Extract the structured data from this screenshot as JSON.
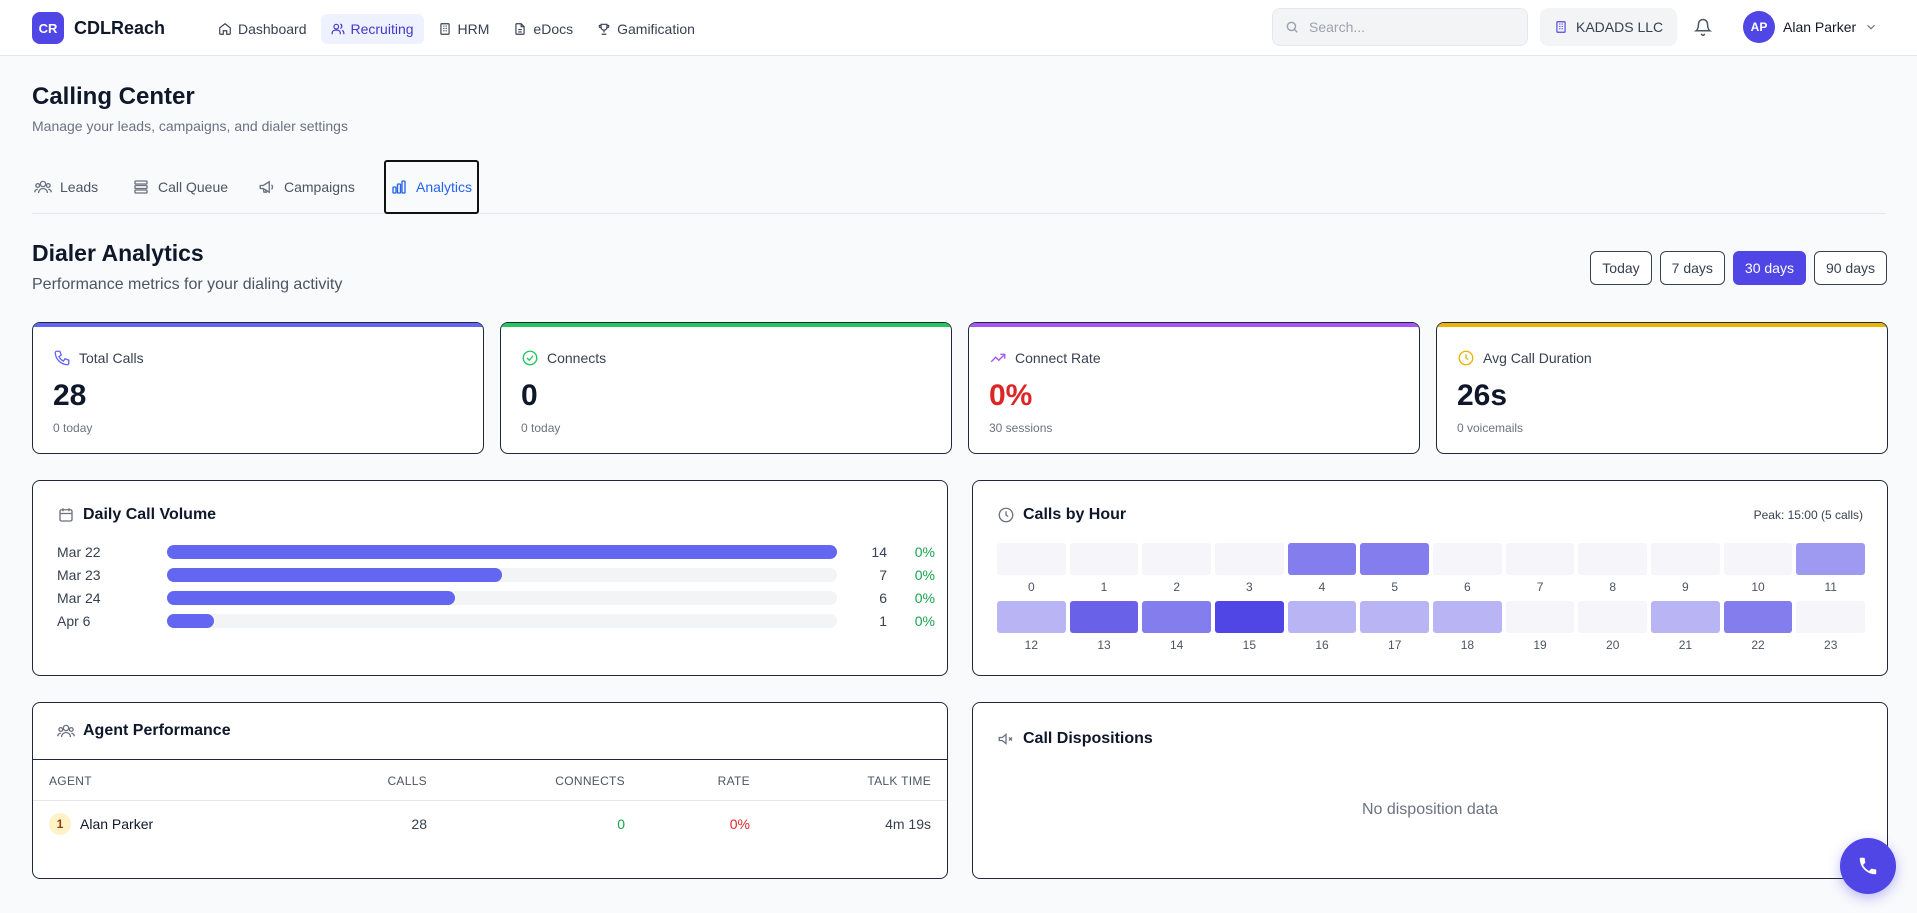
{
  "app": {
    "logo_initials": "CR",
    "name": "CDLReach"
  },
  "nav": [
    {
      "label": "Dashboard",
      "icon": "home-icon",
      "active": false
    },
    {
      "label": "Recruiting",
      "icon": "users-icon",
      "active": true
    },
    {
      "label": "HRM",
      "icon": "building-icon",
      "active": false
    },
    {
      "label": "eDocs",
      "icon": "document-icon",
      "active": false
    },
    {
      "label": "Gamification",
      "icon": "trophy-icon",
      "active": false
    }
  ],
  "search": {
    "placeholder": "Search..."
  },
  "company": {
    "name": "KADADS LLC",
    "icon": "building-icon"
  },
  "user": {
    "initials": "AP",
    "name": "Alan Parker"
  },
  "page": {
    "title": "Calling Center",
    "subtitle": "Manage your leads, campaigns, and dialer settings"
  },
  "tabs": [
    {
      "label": "Leads",
      "icon": "users-icon",
      "active": false
    },
    {
      "label": "Call Queue",
      "icon": "list-icon",
      "active": false
    },
    {
      "label": "Campaigns",
      "icon": "megaphone-icon",
      "active": false
    },
    {
      "label": "Analytics",
      "icon": "bar-chart-icon",
      "active": true
    }
  ],
  "analytics": {
    "title": "Dialer Analytics",
    "subtitle": "Performance metrics for your dialing activity",
    "ranges": [
      {
        "label": "Today",
        "active": false
      },
      {
        "label": "7 days",
        "active": false
      },
      {
        "label": "30 days",
        "active": true
      },
      {
        "label": "90 days",
        "active": false
      }
    ]
  },
  "stats": [
    {
      "label": "Total Calls",
      "value": "28",
      "sub": "0 today",
      "icon": "phone-icon",
      "accent": "#6366f1",
      "value_color": "#0f172a"
    },
    {
      "label": "Connects",
      "value": "0",
      "sub": "0 today",
      "icon": "check-circle-icon",
      "accent": "#22c55e",
      "value_color": "#0f172a"
    },
    {
      "label": "Connect Rate",
      "value": "0%",
      "sub": "30 sessions",
      "icon": "trending-up-icon",
      "accent": "#a855f7",
      "value_color": "#dc2626"
    },
    {
      "label": "Avg Call Duration",
      "value": "26s",
      "sub": "0 voicemails",
      "icon": "clock-icon",
      "accent": "#eab308",
      "value_color": "#0f172a"
    }
  ],
  "daily_volume": {
    "title": "Daily Call Volume",
    "rows": [
      {
        "date": "Mar 22",
        "count": 14,
        "rate": "0%",
        "fraction": 1.0
      },
      {
        "date": "Mar 23",
        "count": 7,
        "rate": "0%",
        "fraction": 0.5
      },
      {
        "date": "Mar 24",
        "count": 6,
        "rate": "0%",
        "fraction": 0.43
      },
      {
        "date": "Apr 6",
        "count": 1,
        "rate": "0%",
        "fraction": 0.07
      }
    ]
  },
  "calls_by_hour": {
    "title": "Calls by Hour",
    "peak": "Peak: 15:00 (5 calls)",
    "counts": [
      0,
      0,
      0,
      0,
      3,
      3,
      0,
      0,
      0,
      0,
      0,
      2,
      1,
      4,
      3,
      5,
      1,
      1,
      1,
      0,
      0,
      1,
      3,
      0
    ]
  },
  "agent_performance": {
    "title": "Agent Performance",
    "columns": [
      "AGENT",
      "CALLS",
      "CONNECTS",
      "RATE",
      "TALK TIME"
    ],
    "rows": [
      {
        "rank": "1",
        "agent": "Alan Parker",
        "calls": "28",
        "connects": "0",
        "rate": "0%",
        "talk_time": "4m 19s"
      }
    ]
  },
  "dispositions": {
    "title": "Call Dispositions",
    "empty": "No disposition data"
  }
}
